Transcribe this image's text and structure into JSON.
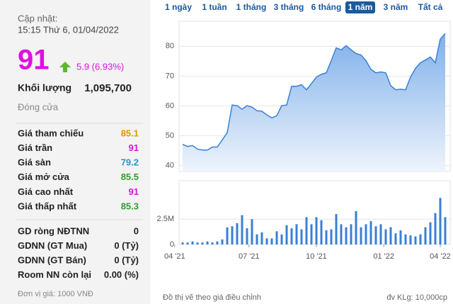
{
  "header": {
    "updated_label": "Cập nhật:",
    "updated_time": "15:15 Thứ 6, 01/04/2022",
    "price": 91,
    "change": "5.9 (6.93%)"
  },
  "volume": {
    "label": "Khối lượng",
    "value": "1,095,700"
  },
  "close_label": "Đóng cửa",
  "price_rows": [
    {
      "label": "Giá tham chiếu",
      "value": 85.1,
      "color": "#e69500"
    },
    {
      "label": "Giá trần",
      "value": 91,
      "color": "#e010e0"
    },
    {
      "label": "Giá sàn",
      "value": 79.2,
      "color": "#1a9ad6"
    },
    {
      "label": "Giá mở cửa",
      "value": 85.5,
      "color": "#2e9e2e"
    },
    {
      "label": "Giá cao nhất",
      "value": 91,
      "color": "#e010e0"
    },
    {
      "label": "Giá thấp nhất",
      "value": 85.3,
      "color": "#2e9e2e"
    }
  ],
  "foreign_rows": [
    {
      "label": "GD ròng NĐTNN",
      "value": "0"
    },
    {
      "label": "GDNN (GT Mua)",
      "value": "0 (Tỷ)"
    },
    {
      "label": "GDNN (GT Bán)",
      "value": "0 (Tỷ)"
    },
    {
      "label": "Room NN còn lại",
      "value": "0.00 (%)"
    }
  ],
  "unit_note": "Đơn vị giá: 1000 VNĐ",
  "range_buttons": [
    "1 ngày",
    "1 tuần",
    "1 tháng",
    "3 tháng",
    "6 tháng",
    "1 năm",
    "3 năm",
    "Tất cả"
  ],
  "active_range": 5,
  "chart_notes": {
    "left": "Đồ thị vẽ theo giá điều chỉnh",
    "right": "đv KLg: 10,000cp"
  },
  "chart_data": [
    {
      "type": "area",
      "color": "#3a7fd5",
      "grid": true,
      "ylim": [
        38,
        88.4
      ],
      "yticks": [
        40,
        50,
        60,
        70,
        80
      ],
      "categories": [
        null,
        null,
        null,
        null,
        null,
        null,
        null,
        null,
        null,
        null,
        null,
        null,
        null,
        null,
        null,
        null,
        null,
        null,
        null,
        null,
        null,
        null,
        null,
        null,
        null,
        null,
        null,
        null,
        null,
        null,
        null,
        null,
        null,
        null,
        null,
        null,
        null,
        null,
        null,
        null,
        null,
        null,
        null,
        null,
        null,
        null,
        null,
        null,
        null,
        null,
        null,
        null,
        null,
        null
      ],
      "values": [
        47.1,
        46.4,
        46.7,
        45.5,
        45.2,
        45.2,
        46.2,
        46.2,
        48.6,
        51.0,
        60.3,
        60.1,
        58.9,
        60.1,
        59.6,
        58.4,
        58.2,
        57.0,
        56.0,
        56.7,
        60.1,
        60.3,
        66.6,
        66.6,
        67.1,
        65.4,
        67.5,
        69.7,
        70.6,
        71.1,
        75.2,
        79.5,
        78.8,
        80.2,
        78.8,
        77.6,
        77.1,
        75.2,
        72.3,
        71.1,
        71.4,
        71.1,
        66.8,
        65.4,
        65.6,
        65.4,
        69.7,
        72.6,
        74.5,
        75.4,
        76.4,
        74.5,
        82.4,
        84.3
      ]
    },
    {
      "type": "bar",
      "color": "#3a7fd5",
      "grid": true,
      "ylim": [
        0,
        6300000
      ],
      "yticks": [
        0,
        {
          "value": 2500000,
          "label": "2.5M"
        }
      ],
      "categories": [
        null,
        null,
        null,
        null,
        null,
        null,
        null,
        null,
        null,
        null,
        null,
        null,
        null,
        null,
        null,
        null,
        null,
        null,
        null,
        null,
        null,
        null,
        null,
        null,
        null,
        null,
        null,
        null,
        null,
        null,
        null,
        null,
        null,
        null,
        null,
        null,
        null,
        null,
        null,
        null,
        null,
        null,
        null,
        null,
        null,
        null,
        null,
        null,
        null,
        null,
        null,
        null,
        null,
        null
      ],
      "xticks": [
        {
          "value": -1.6,
          "label": "04 '21"
        },
        {
          "value": 13.4,
          "label": "07 '21"
        },
        {
          "value": 27,
          "label": "10 '21"
        },
        {
          "value": 40.6,
          "label": "01 '22"
        },
        {
          "value": 52,
          "label": "04 '22"
        }
      ],
      "values": [
        200000,
        200000,
        300000,
        200000,
        200000,
        300000,
        200000,
        300000,
        500000,
        1700000,
        1800000,
        2100000,
        2900000,
        1600000,
        2500000,
        1000000,
        1200000,
        600000,
        600000,
        1300000,
        1000000,
        1900000,
        1600000,
        2000000,
        1500000,
        2700000,
        2000000,
        2700000,
        2400000,
        1400000,
        1500000,
        3000000,
        2000000,
        1700000,
        2000000,
        3300000,
        1700000,
        2000000,
        2300000,
        1800000,
        2000000,
        1500000,
        1700000,
        1100000,
        1400000,
        1000000,
        900000,
        800000,
        1000000,
        1700000,
        2200000,
        3100000,
        4600000,
        2700000
      ]
    }
  ]
}
